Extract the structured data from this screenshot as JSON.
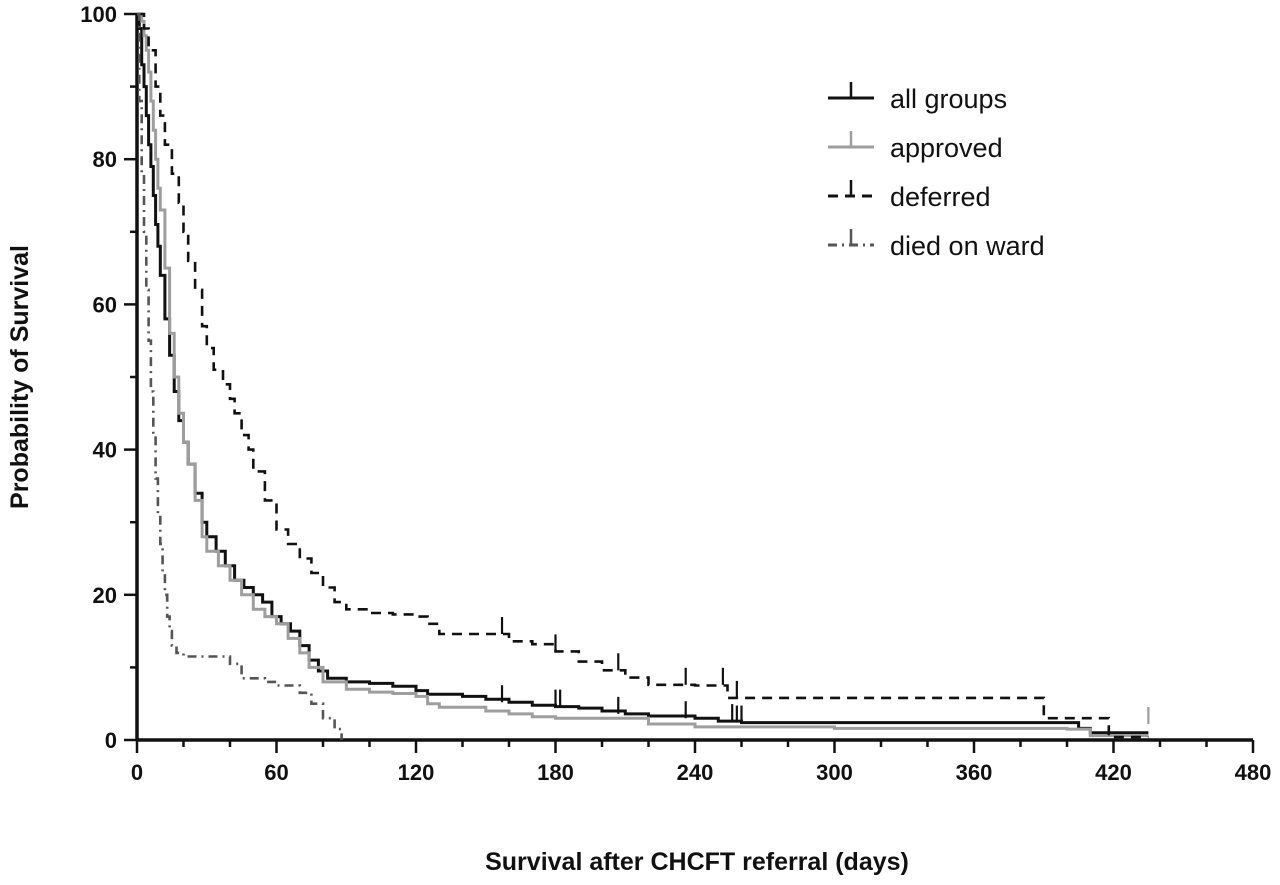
{
  "chart_data": {
    "type": "line",
    "step": true,
    "xlabel": "Survival after CHCFT referral (days)",
    "ylabel": "Probability of Survival",
    "xlim": [
      0,
      480
    ],
    "ylim": [
      0,
      100
    ],
    "x_ticks": [
      0,
      60,
      120,
      180,
      240,
      300,
      360,
      420,
      480
    ],
    "y_ticks": [
      0,
      20,
      40,
      60,
      80,
      100
    ],
    "x_minor_step": 20,
    "y_minor_step": 10,
    "grid": false,
    "legend_position": "top-right",
    "series": [
      {
        "name": "all groups",
        "color": "#111111",
        "dash": "solid",
        "points": [
          [
            0,
            100
          ],
          [
            1,
            98
          ],
          [
            2,
            93
          ],
          [
            3,
            90
          ],
          [
            4,
            86
          ],
          [
            5,
            82
          ],
          [
            6,
            79
          ],
          [
            7,
            75
          ],
          [
            8,
            71
          ],
          [
            9,
            68
          ],
          [
            10,
            64
          ],
          [
            12,
            58
          ],
          [
            14,
            53
          ],
          [
            16,
            48
          ],
          [
            18,
            44
          ],
          [
            20,
            41
          ],
          [
            22,
            38
          ],
          [
            25,
            34
          ],
          [
            28,
            30
          ],
          [
            30,
            28
          ],
          [
            34,
            26
          ],
          [
            38,
            24
          ],
          [
            42,
            22
          ],
          [
            46,
            21
          ],
          [
            50,
            20
          ],
          [
            54,
            19
          ],
          [
            58,
            17
          ],
          [
            62,
            16
          ],
          [
            66,
            15
          ],
          [
            70,
            13
          ],
          [
            74,
            11
          ],
          [
            78,
            9.5
          ],
          [
            82,
            8.5
          ],
          [
            90,
            8
          ],
          [
            100,
            7.8
          ],
          [
            110,
            7.4
          ],
          [
            120,
            6.8
          ],
          [
            125,
            6.3
          ],
          [
            140,
            6
          ],
          [
            150,
            5.6
          ],
          [
            160,
            5.2
          ],
          [
            170,
            4.8
          ],
          [
            180,
            4.6
          ],
          [
            190,
            4.4
          ],
          [
            200,
            4
          ],
          [
            210,
            3.6
          ],
          [
            220,
            3.3
          ],
          [
            240,
            3
          ],
          [
            250,
            2.6
          ],
          [
            260,
            2.4
          ],
          [
            380,
            2.4
          ],
          [
            405,
            1.6
          ],
          [
            410,
            1
          ],
          [
            435,
            1
          ]
        ],
        "censored": [
          [
            157,
            5.2
          ],
          [
            180,
            4.6
          ],
          [
            182,
            4.6
          ],
          [
            207,
            3.6
          ],
          [
            236,
            3
          ],
          [
            256,
            2.6
          ],
          [
            258,
            2.4
          ],
          [
            260,
            2.4
          ]
        ]
      },
      {
        "name": "approved",
        "color": "#9e9e9e",
        "dash": "solid",
        "points": [
          [
            0,
            100
          ],
          [
            2,
            99
          ],
          [
            3,
            97
          ],
          [
            4,
            95
          ],
          [
            5,
            92
          ],
          [
            6,
            88
          ],
          [
            7,
            84
          ],
          [
            8,
            80
          ],
          [
            9,
            76
          ],
          [
            10,
            73
          ],
          [
            12,
            65
          ],
          [
            14,
            56
          ],
          [
            16,
            50
          ],
          [
            18,
            45
          ],
          [
            20,
            41
          ],
          [
            22,
            38
          ],
          [
            25,
            33
          ],
          [
            28,
            28
          ],
          [
            30,
            26
          ],
          [
            35,
            24
          ],
          [
            40,
            22
          ],
          [
            45,
            20
          ],
          [
            50,
            18
          ],
          [
            55,
            17
          ],
          [
            60,
            16
          ],
          [
            65,
            14
          ],
          [
            70,
            12
          ],
          [
            74,
            10
          ],
          [
            80,
            8
          ],
          [
            90,
            7
          ],
          [
            100,
            6.6
          ],
          [
            110,
            6.4
          ],
          [
            120,
            6
          ],
          [
            125,
            5
          ],
          [
            130,
            4.5
          ],
          [
            150,
            4
          ],
          [
            160,
            3.6
          ],
          [
            170,
            3.2
          ],
          [
            180,
            3
          ],
          [
            200,
            3
          ],
          [
            220,
            2.2
          ],
          [
            240,
            1.8
          ],
          [
            300,
            1.6
          ],
          [
            400,
            1.5
          ],
          [
            410,
            0.6
          ],
          [
            435,
            0.6
          ]
        ],
        "censored": [
          [
            435,
            2.2
          ]
        ]
      },
      {
        "name": "deferred",
        "color": "#111111",
        "dash": "dashed",
        "points": [
          [
            0,
            100
          ],
          [
            3,
            98
          ],
          [
            5,
            95
          ],
          [
            8,
            90
          ],
          [
            10,
            86
          ],
          [
            12,
            82
          ],
          [
            15,
            78
          ],
          [
            18,
            74
          ],
          [
            20,
            70
          ],
          [
            22,
            66
          ],
          [
            25,
            62
          ],
          [
            28,
            57
          ],
          [
            30,
            54
          ],
          [
            33,
            51
          ],
          [
            37,
            49
          ],
          [
            40,
            47
          ],
          [
            42,
            45
          ],
          [
            45,
            42
          ],
          [
            48,
            40
          ],
          [
            50,
            37
          ],
          [
            55,
            33
          ],
          [
            60,
            29
          ],
          [
            65,
            27
          ],
          [
            70,
            25
          ],
          [
            75,
            23
          ],
          [
            80,
            21
          ],
          [
            85,
            19
          ],
          [
            90,
            18
          ],
          [
            100,
            17.5
          ],
          [
            110,
            17.3
          ],
          [
            120,
            17
          ],
          [
            125,
            16
          ],
          [
            130,
            14.6
          ],
          [
            150,
            14.6
          ],
          [
            160,
            13.6
          ],
          [
            170,
            13.2
          ],
          [
            180,
            12.2
          ],
          [
            190,
            10.8
          ],
          [
            200,
            9.6
          ],
          [
            210,
            8.6
          ],
          [
            220,
            7.6
          ],
          [
            240,
            7.5
          ],
          [
            254,
            5.8
          ],
          [
            260,
            5.8
          ],
          [
            385,
            5.8
          ],
          [
            390,
            3
          ],
          [
            415,
            3
          ],
          [
            418,
            0.4
          ],
          [
            435,
            0.4
          ]
        ],
        "censored": [
          [
            157,
            14.6
          ],
          [
            180,
            12.2
          ],
          [
            207,
            9.6
          ],
          [
            236,
            7.6
          ],
          [
            252,
            7.6
          ],
          [
            258,
            5.8
          ]
        ]
      },
      {
        "name": "died on ward",
        "color": "#555555",
        "dash": "dashdot",
        "points": [
          [
            0,
            100
          ],
          [
            1,
            88
          ],
          [
            2,
            78
          ],
          [
            3,
            70
          ],
          [
            4,
            62
          ],
          [
            5,
            55
          ],
          [
            6,
            48
          ],
          [
            7,
            42
          ],
          [
            8,
            36
          ],
          [
            9,
            31
          ],
          [
            10,
            27
          ],
          [
            11,
            23
          ],
          [
            12,
            20
          ],
          [
            13,
            17
          ],
          [
            14,
            15
          ],
          [
            15,
            13
          ],
          [
            17,
            12
          ],
          [
            20,
            11.5
          ],
          [
            35,
            11.5
          ],
          [
            40,
            10.5
          ],
          [
            45,
            8.5
          ],
          [
            55,
            8
          ],
          [
            60,
            7.5
          ],
          [
            70,
            6.5
          ],
          [
            75,
            5
          ],
          [
            80,
            3
          ],
          [
            85,
            1.5
          ],
          [
            88,
            0
          ]
        ],
        "censored": []
      }
    ]
  }
}
